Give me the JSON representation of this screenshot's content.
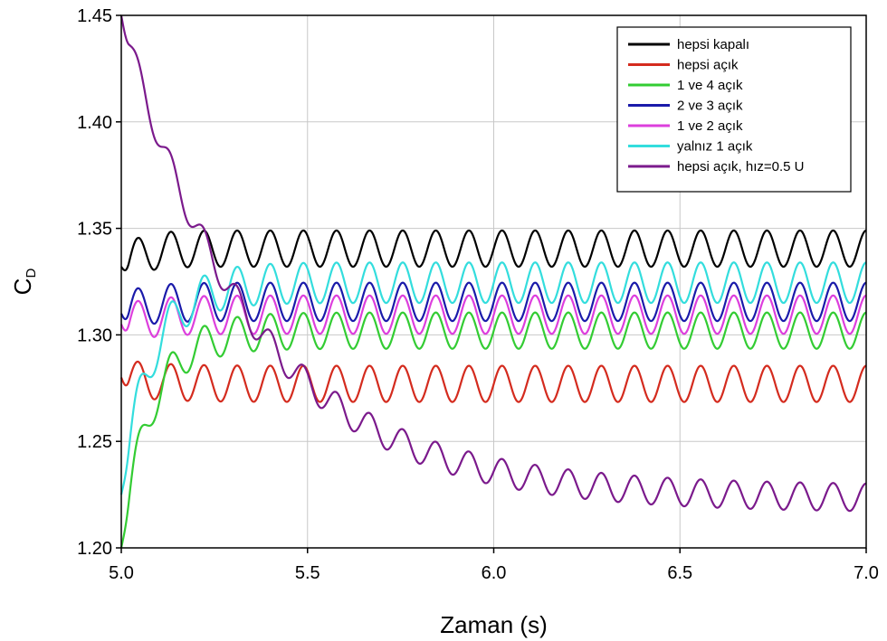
{
  "chart_data": {
    "type": "line",
    "title": "",
    "xlabel": "Zaman (s)",
    "ylabel_main": "C",
    "ylabel_sub": "D",
    "xlim": [
      5.0,
      7.0
    ],
    "ylim": [
      1.2,
      1.45
    ],
    "x_ticks": [
      "5.0",
      "5.5",
      "6.0",
      "6.5",
      "7.0"
    ],
    "y_ticks": [
      "1.20",
      "1.25",
      "1.30",
      "1.35",
      "1.40",
      "1.45"
    ],
    "grid": true,
    "legend_position": "top-right",
    "period_s": 0.0889,
    "series": [
      {
        "name": "hepsi kapalı",
        "color": "#000000",
        "mean": 1.3405,
        "amplitude": 0.0085,
        "start_value": 1.332,
        "settle_s": 0.05
      },
      {
        "name": "hepsi açık",
        "color": "#d42b1e",
        "mean": 1.277,
        "amplitude": 0.0085,
        "start_value": 1.28,
        "settle_s": 0.1
      },
      {
        "name": "1 ve 4 açık",
        "color": "#33cc33",
        "mean": 1.302,
        "amplitude": 0.0085,
        "start_value": 1.2,
        "settle_s": 0.08
      },
      {
        "name": "2 ve 3 açık",
        "color": "#1a1aaa",
        "mean": 1.3155,
        "amplitude": 0.009,
        "start_value": 1.31,
        "settle_s": 0.06
      },
      {
        "name": "1 ve 2 açık",
        "color": "#dd3fdd",
        "mean": 1.3095,
        "amplitude": 0.009,
        "start_value": 1.305,
        "settle_s": 0.08
      },
      {
        "name": "yalnız 1 açık",
        "color": "#33dddd",
        "mean": 1.3245,
        "amplitude": 0.0095,
        "start_value": 1.225,
        "settle_s": 0.08
      },
      {
        "name": "hepsi açık, hız=0.5 U",
        "color": "#7b1a8c",
        "mean": 1.223,
        "amplitude": 0.0065,
        "start_value": 1.45,
        "settle_s": 0.35
      }
    ]
  }
}
